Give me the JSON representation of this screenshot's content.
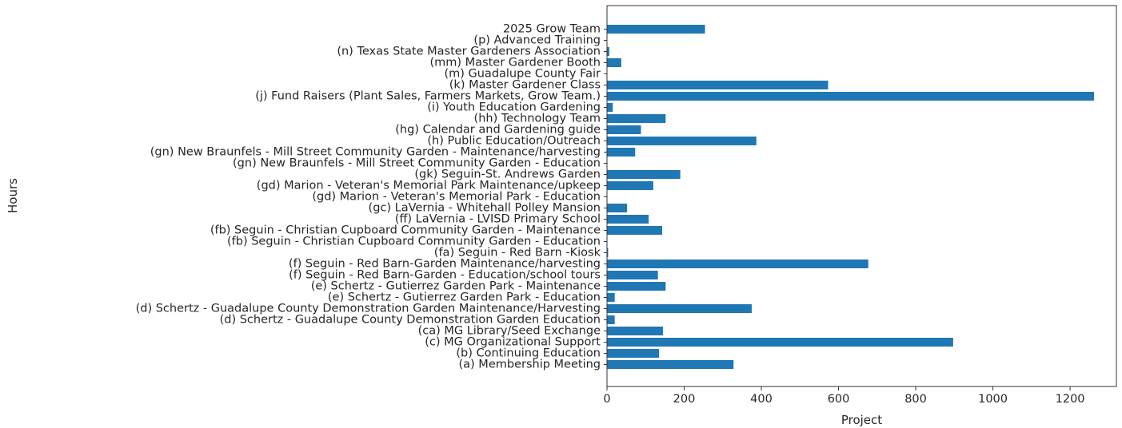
{
  "chart_data": {
    "type": "bar",
    "orientation": "horizontal",
    "title": "",
    "xlabel": "Project",
    "ylabel": "Hours",
    "xlim": [
      0,
      1320
    ],
    "xticks": [
      0,
      200,
      400,
      600,
      800,
      1000,
      1200
    ],
    "grid": false,
    "legend": "none",
    "bar_color": "#1f77b4",
    "categories": [
      "(a) Membership Meeting",
      "(b) Continuing Education",
      "(c) MG Organizational Support",
      "(ca) MG Library/Seed Exchange",
      "(d) Schertz - Guadalupe County Demonstration Garden Education",
      "(d) Schertz - Guadalupe County Demonstration Garden Maintenance/Harvesting",
      "(e) Schertz - Gutierrez Garden Park - Education",
      "(e) Schertz - Gutierrez Garden Park - Maintenance",
      "(f) Seguin - Red Barn-Garden - Education/school tours",
      "(f) Seguin - Red Barn-Garden Maintenance/harvesting",
      "(fa) Seguin - Red Barn -Kiosk",
      "(fb) Seguin - Christian Cupboard Community Garden - Education",
      "(fb) Seguin - Christian Cupboard Community Garden - Maintenance",
      "(ff) LaVernia - LVISD Primary School",
      "(gc) LaVernia - Whitehall Polley Mansion",
      "(gd) Marion - Veteran's Memorial Park - Education",
      "(gd) Marion - Veteran's Memorial Park Maintenance/upkeep",
      "(gk) Seguin-St. Andrews Garden",
      "(gn) New Braunfels - Mill Street Community Garden - Education",
      "(gn) New Braunfels - Mill Street Community Garden - Maintenance/harvesting",
      "(h) Public Education/Outreach",
      "(hg) Calendar and Gardening guide",
      "(hh) Technology Team",
      "(i) Youth Education Gardening",
      "(j) Fund Raisers (Plant Sales, Farmers Markets, Grow Team.)",
      "(k) Master Gardener Class",
      "(m) Guadalupe County Fair",
      "(mm) Master Gardener Booth",
      "(n) Texas State Master Gardeners Association",
      "(p) Advanced Training",
      "2025 Grow Team"
    ],
    "values": [
      328,
      135,
      897,
      145,
      20,
      375,
      20,
      152,
      132,
      677,
      3,
      0,
      143,
      108,
      52,
      0,
      120,
      190,
      0,
      73,
      387,
      88,
      152,
      15,
      1262,
      573,
      0,
      37,
      6,
      0,
      254
    ]
  }
}
